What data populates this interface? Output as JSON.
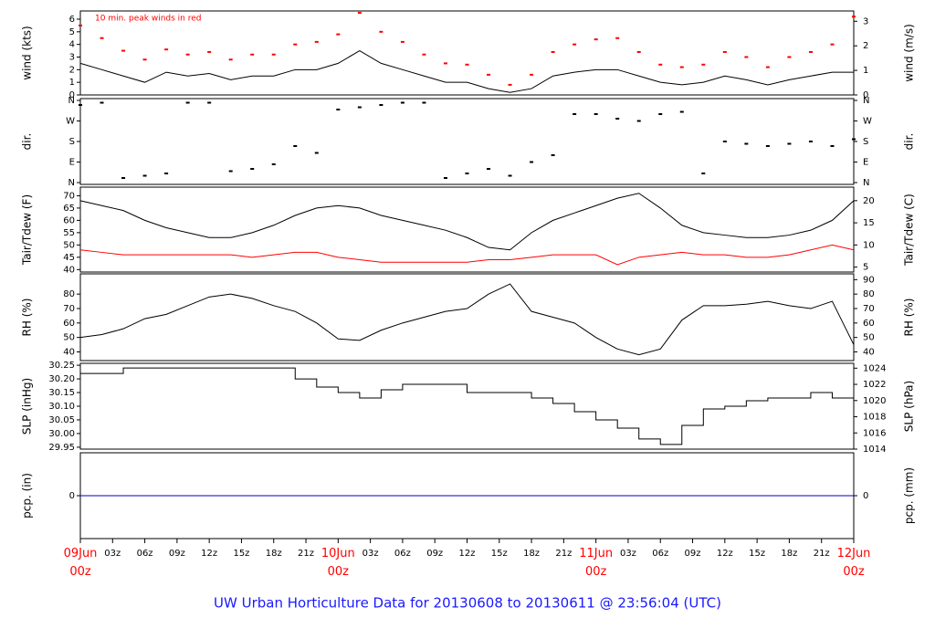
{
  "title": "UW Urban Horticulture Data for 20130608  to  20130611 @ 23:56:04  (UTC)",
  "chart_data": [
    {
      "type": "line",
      "ylabel": "wind (kts)",
      "y2label": "wind (m/s)",
      "annotation": "10 min. peak winds in red",
      "x": [
        0,
        2,
        4,
        6,
        8,
        10,
        12,
        14,
        16,
        18,
        20,
        22,
        24,
        26,
        28,
        30,
        32,
        34,
        36,
        38,
        40,
        42,
        44,
        46,
        48,
        50,
        52,
        54,
        56,
        58,
        60,
        62,
        64,
        66,
        68,
        70,
        72
      ],
      "xlim": [
        0,
        72
      ],
      "ylim": [
        0,
        6.65
      ],
      "yticks": [
        0,
        1,
        2,
        3,
        4,
        5,
        6
      ],
      "y2lim": [
        0,
        3.42
      ],
      "y2ticks": [
        0,
        1,
        2,
        3
      ],
      "series": [
        {
          "color": "#000000",
          "marker": "line",
          "values": [
            2.5,
            2,
            1.5,
            1,
            1.8,
            1.5,
            1.7,
            1.2,
            1.5,
            1.5,
            2,
            2,
            2.5,
            3.5,
            2.5,
            2,
            1.5,
            1,
            1,
            0.5,
            0.2,
            0.5,
            1.5,
            1.8,
            2,
            2,
            1.5,
            1,
            0.8,
            1,
            1.5,
            1.2,
            0.8,
            1.2,
            1.5,
            1.8,
            1.8
          ]
        },
        {
          "color": "#ff0000",
          "marker": "point",
          "values": [
            5.5,
            4.5,
            3.5,
            2.8,
            3.6,
            3.2,
            3.4,
            2.8,
            3.2,
            3.2,
            4,
            4.2,
            4.8,
            6.5,
            5,
            4.2,
            3.2,
            2.5,
            2.4,
            1.6,
            0.8,
            1.6,
            3.4,
            4,
            4.4,
            4.5,
            3.4,
            2.4,
            2.2,
            2.4,
            3.4,
            3,
            2.2,
            3,
            3.4,
            4,
            6.2
          ]
        }
      ]
    },
    {
      "type": "scatter",
      "ylabel": "dir.",
      "y2label": "dir.",
      "x": [
        0,
        2,
        4,
        6,
        8,
        10,
        12,
        14,
        16,
        18,
        20,
        22,
        24,
        26,
        28,
        30,
        32,
        34,
        36,
        38,
        40,
        42,
        44,
        46,
        48,
        50,
        52,
        54,
        56,
        58,
        60,
        62,
        64,
        66,
        68,
        70,
        72
      ],
      "xlim": [
        0,
        72
      ],
      "ylim": [
        -8,
        368
      ],
      "yticks": [
        {
          "value": 0,
          "label": "N"
        },
        {
          "value": 90,
          "label": "E"
        },
        {
          "value": 180,
          "label": "S"
        },
        {
          "value": 270,
          "label": "W"
        },
        {
          "value": 360,
          "label": "N"
        }
      ],
      "y2lim": [
        -8,
        368
      ],
      "y2ticks": [
        {
          "value": 0,
          "label": "N"
        },
        {
          "value": 90,
          "label": "E"
        },
        {
          "value": 180,
          "label": "S"
        },
        {
          "value": 270,
          "label": "W"
        },
        {
          "value": 360,
          "label": "N"
        }
      ],
      "series": [
        {
          "color": "#000000",
          "marker": "point",
          "values": [
            340,
            350,
            20,
            30,
            40,
            350,
            350,
            50,
            60,
            80,
            160,
            130,
            320,
            330,
            340,
            350,
            350,
            20,
            40,
            60,
            30,
            90,
            120,
            300,
            300,
            280,
            270,
            300,
            310,
            40,
            180,
            170,
            160,
            170,
            180,
            160,
            190
          ]
        }
      ]
    },
    {
      "type": "line",
      "ylabel": "Tair/Tdew (F)",
      "y2label": "Tair/Tdew (C)",
      "x": [
        0,
        2,
        4,
        6,
        8,
        10,
        12,
        14,
        16,
        18,
        20,
        22,
        24,
        26,
        28,
        30,
        32,
        34,
        36,
        38,
        40,
        42,
        44,
        46,
        48,
        50,
        52,
        54,
        56,
        58,
        60,
        62,
        64,
        66,
        68,
        70,
        72
      ],
      "xlim": [
        0,
        72
      ],
      "ylim": [
        39,
        73.5
      ],
      "yticks": [
        40,
        45,
        50,
        55,
        60,
        65,
        70
      ],
      "y2lim": [
        3.89,
        23.06
      ],
      "y2ticks": [
        5,
        10,
        15,
        20
      ],
      "series": [
        {
          "color": "#000000",
          "marker": "line",
          "values": [
            68,
            66,
            64,
            60,
            57,
            55,
            53,
            53,
            55,
            58,
            62,
            65,
            66,
            65,
            62,
            60,
            58,
            56,
            53,
            49,
            48,
            55,
            60,
            63,
            66,
            69,
            71,
            65,
            58,
            55,
            54,
            53,
            53,
            54,
            56,
            60,
            68
          ]
        },
        {
          "color": "#ff0000",
          "marker": "line",
          "values": [
            48,
            47,
            46,
            46,
            46,
            46,
            46,
            46,
            45,
            46,
            47,
            47,
            45,
            44,
            43,
            43,
            43,
            43,
            43,
            44,
            44,
            45,
            46,
            46,
            46,
            42,
            45,
            46,
            47,
            46,
            46,
            45,
            45,
            46,
            48,
            50,
            48
          ]
        }
      ]
    },
    {
      "type": "line",
      "ylabel": "RH (%)",
      "y2label": "RH (%)",
      "x": [
        0,
        2,
        4,
        6,
        8,
        10,
        12,
        14,
        16,
        18,
        20,
        22,
        24,
        26,
        28,
        30,
        32,
        34,
        36,
        38,
        40,
        42,
        44,
        46,
        48,
        50,
        52,
        54,
        56,
        58,
        60,
        62,
        64,
        66,
        68,
        70,
        72
      ],
      "xlim": [
        0,
        72
      ],
      "ylim": [
        34,
        94
      ],
      "yticks": [
        40,
        50,
        60,
        70,
        80
      ],
      "y2lim": [
        34,
        94
      ],
      "y2ticks": [
        40,
        50,
        60,
        70,
        80,
        90
      ],
      "series": [
        {
          "color": "#000000",
          "marker": "line",
          "values": [
            50,
            52,
            56,
            63,
            66,
            72,
            78,
            80,
            77,
            72,
            68,
            60,
            49,
            48,
            55,
            60,
            64,
            68,
            70,
            80,
            87,
            68,
            64,
            60,
            50,
            42,
            38,
            42,
            62,
            72,
            72,
            73,
            75,
            72,
            70,
            75,
            45
          ]
        }
      ]
    },
    {
      "type": "step",
      "ylabel": "SLP (inHg)",
      "y2label": "SLP (hPa)",
      "x": [
        0,
        2,
        4,
        6,
        8,
        10,
        12,
        14,
        16,
        18,
        20,
        22,
        24,
        26,
        28,
        30,
        32,
        34,
        36,
        38,
        40,
        42,
        44,
        46,
        48,
        50,
        52,
        54,
        56,
        58,
        60,
        62,
        64,
        66,
        68,
        70,
        72
      ],
      "xlim": [
        0,
        72
      ],
      "ylim": [
        29.943,
        30.257
      ],
      "yticks": [
        29.95,
        {
          "value": 30.0,
          "label": "30.00"
        },
        30.05,
        {
          "value": 30.1,
          "label": "30.10"
        },
        30.15,
        {
          "value": 30.2,
          "label": "30.20"
        },
        30.25
      ],
      "y2lim": [
        1014.0,
        1024.6
      ],
      "y2ticks": [
        1014,
        1016,
        1018,
        1020,
        1022,
        1024
      ],
      "series": [
        {
          "color": "#000000",
          "marker": "line",
          "values": [
            30.22,
            30.22,
            30.24,
            30.24,
            30.24,
            30.24,
            30.24,
            30.24,
            30.24,
            30.24,
            30.2,
            30.17,
            30.15,
            30.13,
            30.16,
            30.18,
            30.18,
            30.18,
            30.15,
            30.15,
            30.15,
            30.13,
            30.11,
            30.08,
            30.05,
            30.02,
            29.98,
            29.96,
            30.03,
            30.09,
            30.1,
            30.12,
            30.13,
            30.13,
            30.15,
            30.13,
            30.13
          ]
        }
      ]
    },
    {
      "type": "line",
      "ylabel": "pcp. (in)",
      "y2label": "pcp. (mm)",
      "x": [
        0,
        2,
        4,
        6,
        8,
        10,
        12,
        14,
        16,
        18,
        20,
        22,
        24,
        26,
        28,
        30,
        32,
        34,
        36,
        38,
        40,
        42,
        44,
        46,
        48,
        50,
        52,
        54,
        56,
        58,
        60,
        62,
        64,
        66,
        68,
        70,
        72
      ],
      "xlim": [
        0,
        72
      ],
      "ylim": [
        -1,
        1
      ],
      "yticks": [
        0
      ],
      "y2lim": [
        -25.4,
        25.4
      ],
      "y2ticks": [
        0
      ],
      "xticks": [
        {
          "value": 0,
          "label": "09Jun 00z"
        },
        {
          "value": 3,
          "label": "03z"
        },
        {
          "value": 6,
          "label": "06z"
        },
        {
          "value": 9,
          "label": "09z"
        },
        {
          "value": 12,
          "label": "12z"
        },
        {
          "value": 15,
          "label": "15z"
        },
        {
          "value": 18,
          "label": "18z"
        },
        {
          "value": 21,
          "label": "21z"
        },
        {
          "value": 24,
          "label": "10Jun 00z"
        },
        {
          "value": 27,
          "label": "03z"
        },
        {
          "value": 30,
          "label": "06z"
        },
        {
          "value": 33,
          "label": "09z"
        },
        {
          "value": 36,
          "label": "12z"
        },
        {
          "value": 39,
          "label": "15z"
        },
        {
          "value": 42,
          "label": "18z"
        },
        {
          "value": 45,
          "label": "21z"
        },
        {
          "value": 48,
          "label": "11Jun 00z"
        },
        {
          "value": 51,
          "label": "03z"
        },
        {
          "value": 54,
          "label": "06z"
        },
        {
          "value": 57,
          "label": "09z"
        },
        {
          "value": 60,
          "label": "12z"
        },
        {
          "value": 63,
          "label": "15z"
        },
        {
          "value": 66,
          "label": "18z"
        },
        {
          "value": 69,
          "label": "21z"
        },
        {
          "value": 72,
          "label": "12Jun 00z"
        }
      ],
      "series": [
        {
          "color": "#0000cc",
          "marker": "line",
          "values": [
            0,
            0,
            0,
            0,
            0,
            0,
            0,
            0,
            0,
            0,
            0,
            0,
            0,
            0,
            0,
            0,
            0,
            0,
            0,
            0,
            0,
            0,
            0,
            0,
            0,
            0,
            0,
            0,
            0,
            0,
            0,
            0,
            0,
            0,
            0,
            0,
            0
          ]
        }
      ]
    }
  ]
}
